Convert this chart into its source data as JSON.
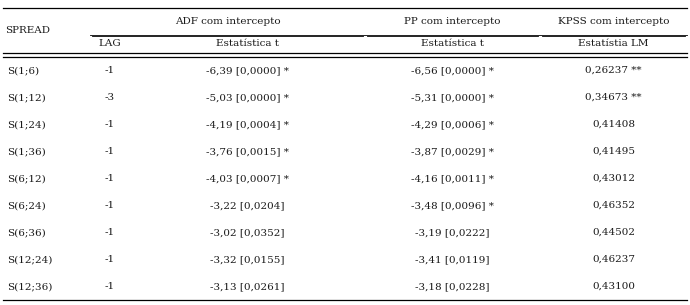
{
  "col_group_headers": [
    "ADF com intercepto",
    "PP com intercepto",
    "KPSS com intercepto"
  ],
  "col_sub_headers": [
    "LAG",
    "Estatística t",
    "Estatística t",
    "Estatístia LM"
  ],
  "rows": [
    [
      "S(1;6)",
      "-1",
      "-6,39 [0,0000] *",
      "-6,56 [0,0000] *",
      "0,26237 **"
    ],
    [
      "S(1;12)",
      "-3",
      "-5,03 [0,0000] *",
      "-5,31 [0,0000] *",
      "0,34673 **"
    ],
    [
      "S(1;24)",
      "-1",
      "-4,19 [0,0004] *",
      "-4,29 [0,0006] *",
      "0,41408"
    ],
    [
      "S(1;36)",
      "-1",
      "-3,76 [0,0015] *",
      "-3,87 [0,0029] *",
      "0,41495"
    ],
    [
      "S(6;12)",
      "-1",
      "-4,03 [0,0007] *",
      "-4,16 [0,0011] *",
      "0,43012"
    ],
    [
      "S(6;24)",
      "-1",
      "-3,22 [0,0204]",
      "-3,48 [0,0096] *",
      "0,46352"
    ],
    [
      "S(6;36)",
      "-1",
      "-3,02 [0,0352]",
      "-3,19 [0,0222]",
      "0,44502"
    ],
    [
      "S(12;24)",
      "-1",
      "-3,32 [0,0155]",
      "-3,41 [0,0119]",
      "0,46237"
    ],
    [
      "S(12;36)",
      "-1",
      "-3,13 [0,0261]",
      "-3,18 [0,0228]",
      "0,43100"
    ]
  ],
  "bg_color": "#ffffff",
  "text_color": "#1a1a1a",
  "font_size": 7.5,
  "spread_label": "SPREAD"
}
